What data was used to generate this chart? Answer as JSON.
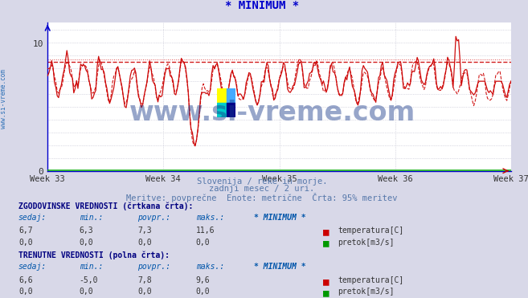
{
  "title": "* MINIMUM *",
  "title_color": "#0000cc",
  "bg_color": "#d8d8e8",
  "plot_bg_color": "#ffffff",
  "grid_color": "#bbbbcc",
  "xlabel_weeks": [
    "Week 33",
    "Week 34",
    "Week 35",
    "Week 36",
    "Week 37"
  ],
  "ylim": [
    0,
    11.6
  ],
  "yticks": [
    0,
    10
  ],
  "xweeks": [
    0,
    84,
    168,
    252,
    336
  ],
  "n_points": 337,
  "line_color": "#cc0000",
  "hline_value": 8.5,
  "hline_color": "#cc0000",
  "watermark_text": "www.si-vreme.com",
  "watermark_color": "#1a3a8a",
  "subtitle1": "Slovenija / reke in morje.",
  "subtitle2": "zadnji mesec / 2 uri.",
  "subtitle3": "Meritve: povprečne  Enote: metrične  Črta: 95% meritev",
  "subtitle_color": "#5577aa",
  "table_header1": "ZGODOVINSKE VREDNOSTI (črtkana črta):",
  "table_header1_color": "#000080",
  "table_cols": [
    "sedaj:",
    "min.:",
    "povpr.:",
    "maks.:",
    "* MINIMUM *"
  ],
  "table_row1": [
    "6,7",
    "6,3",
    "7,3",
    "11,6"
  ],
  "table_row1_label": "temperatura[C]",
  "table_row1_color": "#cc0000",
  "table_row2": [
    "0,0",
    "0,0",
    "0,0",
    "0,0"
  ],
  "table_row2_label": "pretok[m3/s]",
  "table_row2_color": "#009900",
  "table_header2": "TRENUTNE VREDNOSTI (polna črta):",
  "table_header2_color": "#000080",
  "table_row3": [
    "6,6",
    "-5,0",
    "7,8",
    "9,6"
  ],
  "table_row3_label": "temperatura[C]",
  "table_row3_color": "#cc0000",
  "table_row4": [
    "0,0",
    "0,0",
    "0,0",
    "0,0"
  ],
  "table_row4_label": "pretok[m3/s]",
  "table_row4_color": "#009900",
  "axis_color": "#0000cc",
  "green_line_color": "#00aa00",
  "sidebar_text": "www.si-vreme.com",
  "sidebar_color": "#0055aa",
  "logo_colors_tl": "#ffff00",
  "logo_colors_tr": "#44aaff",
  "logo_colors_bl": "#00cccc",
  "logo_colors_br": "#000088"
}
